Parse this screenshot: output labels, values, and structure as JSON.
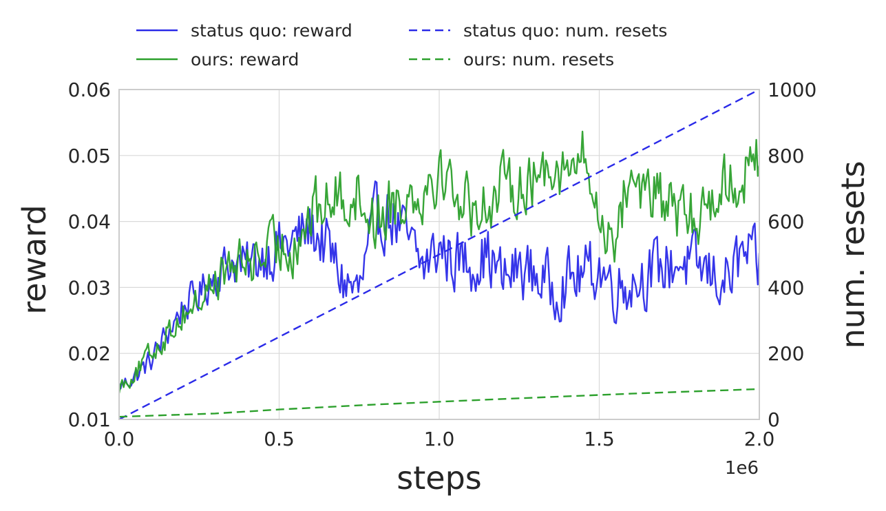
{
  "chart_data": {
    "type": "line",
    "xlabel": "steps",
    "x_multiplier_label": "1e6",
    "ylabel_left": "reward",
    "ylabel_right": "num. resets",
    "xlim": [
      0,
      2000000
    ],
    "ylim_left": [
      0.01,
      0.06
    ],
    "ylim_right": [
      0,
      1000
    ],
    "grid": true,
    "legend_placement": "top",
    "x_ticks": [
      0,
      500000,
      1000000,
      1500000,
      2000000
    ],
    "x_tick_labels": [
      "0.0",
      "0.5",
      "1.0",
      "1.5",
      "2.0"
    ],
    "y_left_ticks": [
      0.01,
      0.02,
      0.03,
      0.04,
      0.05,
      0.06
    ],
    "y_left_tick_labels": [
      "0.01",
      "0.02",
      "0.03",
      "0.04",
      "0.05",
      "0.06"
    ],
    "y_right_ticks": [
      0,
      200,
      400,
      600,
      800,
      1000
    ],
    "y_right_tick_labels": [
      "0",
      "200",
      "400",
      "600",
      "800",
      "1000"
    ],
    "series": [
      {
        "name": "status quo: reward",
        "axis": "left",
        "style": "solid",
        "color": "#2a2ae8",
        "x": [
          0,
          50000,
          100000,
          150000,
          200000,
          250000,
          300000,
          350000,
          400000,
          450000,
          500000,
          550000,
          600000,
          650000,
          700000,
          750000,
          800000,
          850000,
          900000,
          950000,
          1000000,
          1050000,
          1100000,
          1150000,
          1200000,
          1250000,
          1300000,
          1350000,
          1400000,
          1450000,
          1500000,
          1550000,
          1600000,
          1650000,
          1700000,
          1750000,
          1800000,
          1850000,
          1900000,
          1950000,
          2000000
        ],
        "values": [
          0.015,
          0.0165,
          0.019,
          0.023,
          0.027,
          0.029,
          0.032,
          0.034,
          0.033,
          0.035,
          0.036,
          0.037,
          0.039,
          0.036,
          0.031,
          0.029,
          0.04,
          0.041,
          0.037,
          0.033,
          0.036,
          0.034,
          0.034,
          0.035,
          0.031,
          0.033,
          0.032,
          0.03,
          0.031,
          0.032,
          0.033,
          0.03,
          0.031,
          0.032,
          0.033,
          0.034,
          0.033,
          0.032,
          0.031,
          0.035,
          0.033
        ]
      },
      {
        "name": "ours: reward",
        "axis": "left",
        "style": "solid",
        "color": "#2ca02c",
        "x": [
          0,
          50000,
          100000,
          150000,
          200000,
          250000,
          300000,
          350000,
          400000,
          450000,
          500000,
          550000,
          600000,
          650000,
          700000,
          750000,
          800000,
          850000,
          900000,
          950000,
          1000000,
          1050000,
          1100000,
          1150000,
          1200000,
          1250000,
          1300000,
          1350000,
          1400000,
          1450000,
          1500000,
          1550000,
          1600000,
          1650000,
          1700000,
          1750000,
          1800000,
          1850000,
          1900000,
          1950000,
          2000000
        ],
        "values": [
          0.015,
          0.017,
          0.02,
          0.023,
          0.026,
          0.028,
          0.031,
          0.033,
          0.034,
          0.035,
          0.036,
          0.037,
          0.041,
          0.043,
          0.044,
          0.044,
          0.04,
          0.043,
          0.044,
          0.045,
          0.048,
          0.045,
          0.042,
          0.043,
          0.045,
          0.046,
          0.046,
          0.05,
          0.047,
          0.05,
          0.04,
          0.038,
          0.048,
          0.044,
          0.043,
          0.041,
          0.04,
          0.044,
          0.046,
          0.047,
          0.049
        ]
      },
      {
        "name": "status quo: num. resets",
        "axis": "right",
        "style": "dashed",
        "color": "#2a2ae8",
        "x": [
          0,
          2000000
        ],
        "values": [
          0,
          1000
        ]
      },
      {
        "name": "ours: num. resets",
        "axis": "right",
        "style": "dashed",
        "color": "#2ca02c",
        "x": [
          0,
          300000,
          500000,
          800000,
          1200000,
          1600000,
          2000000
        ],
        "values": [
          8,
          18,
          30,
          45,
          62,
          78,
          92
        ]
      }
    ]
  }
}
